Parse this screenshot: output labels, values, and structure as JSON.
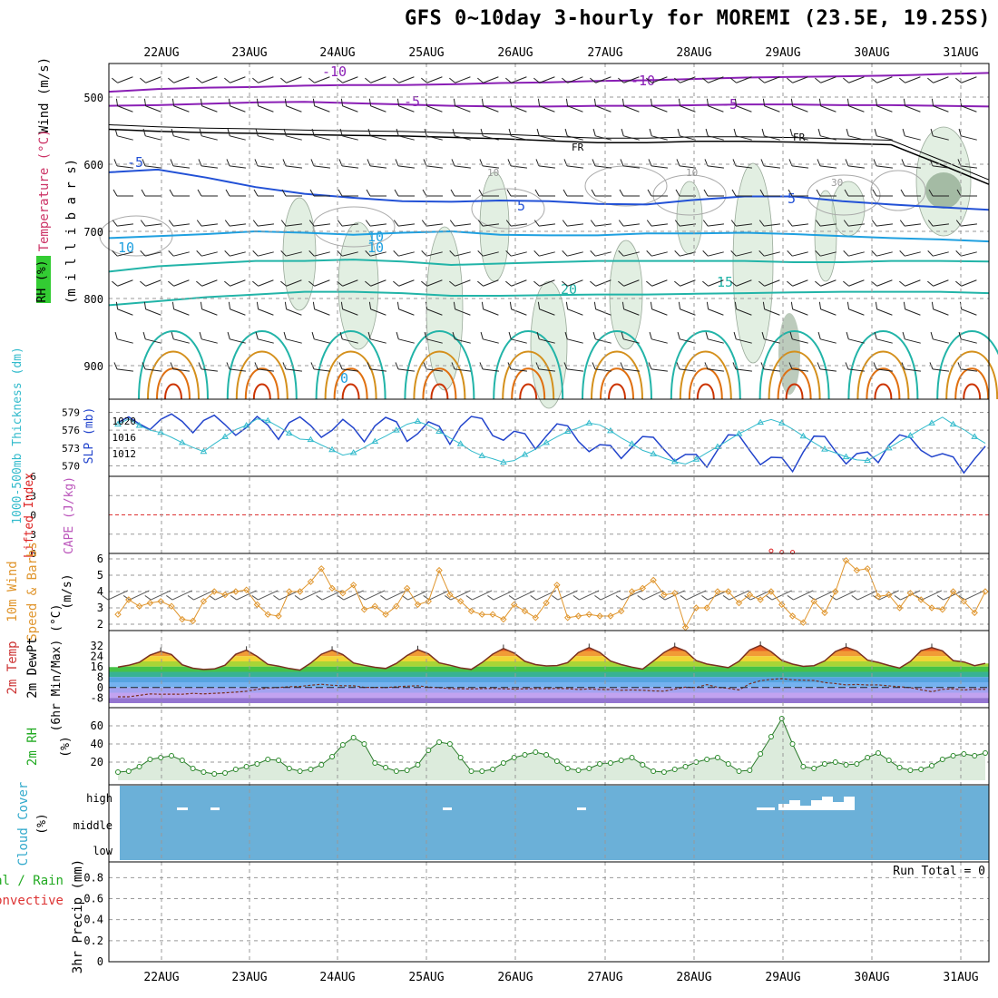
{
  "title": "GFS 0~10day 3-hourly for MOREMI (23.5E, 19.25S)",
  "colors": {
    "temperature": "#cc3333",
    "wind": "#000000",
    "rh": "#22aa22",
    "cloud": "#6bb0d8",
    "slp": "#2244cc",
    "thickness": "#33bbcc",
    "cape": "#bb55bb",
    "lifted": "#dd2222",
    "windspeed": "#e0962e",
    "rh2m": "#22aa22"
  },
  "chart_data": {
    "type": "meteogram",
    "dates": [
      "22AUG",
      "23AUG",
      "24AUG",
      "25AUG",
      "26AUG",
      "27AUG",
      "28AUG",
      "29AUG",
      "30AUG",
      "31AUG"
    ],
    "panels": {
      "upper_air": {
        "ylabels": [
          "Wind (m/s)",
          "Temperature (°C)",
          "RH (%)",
          "(m i l l i b a r s)"
        ],
        "yticks": [
          500,
          600,
          700,
          800,
          900
        ],
        "contour_labels": [
          "-10",
          "-10",
          "-5",
          "-5",
          "FR",
          "FR",
          "-5",
          "5",
          "5",
          "10",
          "10",
          "15",
          "20",
          "0",
          "10",
          "10",
          "30",
          "10"
        ],
        "isotherms": {
          "minus10": [
            492,
            488,
            486,
            485,
            483,
            482,
            482,
            481,
            479,
            478,
            476,
            475,
            473,
            471,
            470,
            469,
            468,
            466,
            464
          ],
          "minus5": [
            513,
            512,
            510,
            508,
            507,
            509,
            511,
            513,
            514,
            514,
            513,
            513,
            512,
            511,
            511,
            512,
            512,
            513,
            514
          ],
          "freezing": [
            548,
            551,
            553,
            554,
            556,
            557,
            558,
            560,
            562,
            565,
            568,
            568,
            566,
            566,
            567,
            569,
            571,
            600,
            630
          ],
          "plus5": [
            612,
            608,
            620,
            634,
            644,
            650,
            655,
            656,
            654,
            655,
            659,
            660,
            653,
            648,
            648,
            655,
            660,
            664,
            668
          ],
          "plus10": [
            710,
            707,
            704,
            700,
            702,
            705,
            702,
            700,
            705,
            706,
            706,
            703,
            703,
            702,
            704,
            707,
            710,
            712,
            715
          ],
          "plus15": [
            760,
            752,
            748,
            744,
            744,
            742,
            745,
            750,
            748,
            746,
            744,
            744,
            744,
            744,
            746,
            746,
            744,
            744,
            745
          ],
          "plus20": [
            810,
            804,
            798,
            794,
            790,
            790,
            792,
            796,
            796,
            795,
            794,
            794,
            793,
            792,
            791,
            790,
            790,
            790,
            792
          ]
        }
      },
      "slp_thickness": {
        "ylabel_left": "1000-500mb Thickness (dm)",
        "ylabel_right": "SLP (mb)",
        "thickness_ticks": [
          579,
          576,
          573,
          570
        ],
        "slp_ticks": [
          1020,
          1016,
          1012
        ],
        "slp": [
          1019.6,
          1021.0,
          1019.3,
          1017.9,
          1020.4,
          1021.7,
          1019.9,
          1017.1,
          1020.1,
          1021.4,
          1019.1,
          1016.5,
          1018.4,
          1021.1,
          1019.0,
          1015.5,
          1019.6,
          1021.0,
          1018.9,
          1016.0,
          1017.7,
          1020.4,
          1018.3,
          1014.9,
          1018.8,
          1020.9,
          1019.8,
          1015.0,
          1016.9,
          1019.8,
          1018.7,
          1014.3,
          1018.7,
          1021.1,
          1020.6,
          1016.4,
          1015.3,
          1017.5,
          1016.9,
          1013.1,
          1016.3,
          1019.3,
          1018.8,
          1015.0,
          1012.5,
          1014.2,
          1014.0,
          1010.8,
          1013.6,
          1016.2,
          1016.0,
          1013.0,
          1010.2,
          1011.8,
          1011.8,
          1008.7,
          1012.9,
          1016.6,
          1016.5,
          1012.8,
          1009.3,
          1011.1,
          1011.0,
          1007.6,
          1012.4,
          1016.3,
          1016.2,
          1012.6,
          1009.5,
          1012.0,
          1012.4,
          1009.8,
          1014.1,
          1016.6,
          1015.9,
          1012.8,
          1011.2,
          1012.0,
          1011.2,
          1007.3,
          1010.7,
          1013.8
        ],
        "thickness": [
          577.0,
          577.9,
          576.8,
          576.0,
          575.6,
          574.8,
          573.9,
          573.1,
          572.4,
          573.7,
          574.9,
          576.1,
          576.8,
          577.9,
          577.6,
          576.6,
          575.5,
          574.5,
          574.4,
          573.5,
          572.7,
          571.8,
          572.2,
          573.1,
          574.1,
          575.0,
          576.0,
          577.0,
          577.5,
          576.8,
          575.8,
          574.7,
          573.7,
          572.5,
          571.7,
          571.2,
          570.6,
          570.9,
          571.9,
          572.8,
          573.9,
          574.9,
          575.8,
          576.4,
          577.2,
          576.9,
          575.9,
          574.7,
          573.7,
          572.6,
          572.0,
          571.3,
          570.7,
          570.3,
          571.1,
          572.2,
          573.2,
          574.3,
          575.4,
          576.3,
          577.3,
          577.8,
          577.2,
          576.2,
          575.0,
          573.9,
          572.8,
          572.2,
          571.5,
          571.0,
          570.9,
          571.9,
          573.0,
          574.1,
          575.1,
          576.2,
          577.2,
          578.2,
          577.0,
          576.1,
          574.9,
          573.8
        ]
      },
      "cape_li": {
        "ylabel_left": "Lifted Index",
        "ylabel_right": "CAPE (J/kg)",
        "yticks": [
          "-6",
          "-3",
          "0",
          "3",
          "6"
        ],
        "lifted_index": [
          9.0,
          9.0,
          9.0,
          9.0,
          9.0,
          9.0,
          9.0,
          9.0,
          9.0,
          9.0,
          9.0,
          9.0,
          9.0,
          9.0,
          9.0,
          9.0,
          9.0,
          9.0,
          9.0,
          9.0,
          9.0,
          9.0,
          9.0,
          9.0,
          9.0,
          9.0,
          9.0,
          9.0,
          9.0,
          9.0,
          9.0,
          9.0,
          9.0,
          9.0,
          9.0,
          9.0,
          9.0,
          9.0,
          9.0,
          9.0,
          9.0,
          9.0,
          9.0,
          9.0,
          9.0,
          9.0,
          9.0,
          9.0,
          9.0,
          9.0,
          9.0,
          9.0,
          9.0,
          9.0,
          9.0,
          9.0,
          9.0,
          9.0,
          9.0,
          9.0,
          9.0,
          5.6,
          5.8,
          5.8,
          9.0,
          9.0,
          9.0,
          9.0,
          9.0,
          9.0,
          9.0,
          9.0,
          9.0,
          9.0,
          9.0,
          9.0,
          9.0,
          9.0,
          9.0,
          9.0,
          9.0,
          9.0
        ]
      },
      "wind10m": {
        "ylabel_left": "10m Wind",
        "ylabel_mid": "Speed & Barbs",
        "ylabel_right": "(m/s)",
        "yticks": [
          2,
          3,
          4,
          5,
          6
        ],
        "speed": [
          2.6,
          3.5,
          3.1,
          3.3,
          3.4,
          3.1,
          2.3,
          2.2,
          3.4,
          4.0,
          3.8,
          4.0,
          4.1,
          3.2,
          2.6,
          2.5,
          4.0,
          4.0,
          4.6,
          5.4,
          4.2,
          3.9,
          4.4,
          2.9,
          3.1,
          2.6,
          3.1,
          4.2,
          3.2,
          3.4,
          5.3,
          3.8,
          3.4,
          2.8,
          2.6,
          2.6,
          2.3,
          3.2,
          2.8,
          2.4,
          3.3,
          4.4,
          2.4,
          2.5,
          2.6,
          2.5,
          2.5,
          2.8,
          4.0,
          4.2,
          4.7,
          3.8,
          3.9,
          1.8,
          3.0,
          3.0,
          4.0,
          4.0,
          3.3,
          3.8,
          3.5,
          4.0,
          3.2,
          2.5,
          2.1,
          3.4,
          2.7,
          4.0,
          5.9,
          5.3,
          5.4,
          3.7,
          3.8,
          3.0,
          3.9,
          3.5,
          3.0,
          2.9,
          4.0,
          3.4,
          2.7,
          4.0
        ]
      },
      "temp2m": {
        "ylabel_left": "2m Temp",
        "ylabel_mid": "2m DewPt",
        "ylabel_right": "(6hr Min/Max) (°C)",
        "yticks": [
          32,
          24,
          16,
          8,
          0,
          -8
        ],
        "temp": [
          15.6,
          17.0,
          19.3,
          24.8,
          27.7,
          25.3,
          17.4,
          14.8,
          13.8,
          14.2,
          17.1,
          25.4,
          28.6,
          23.8,
          17.8,
          16.4,
          14.6,
          13.3,
          18.7,
          25.5,
          28.6,
          25.2,
          18.8,
          17.0,
          15.5,
          14.6,
          18.5,
          24.5,
          29.0,
          25.8,
          18.9,
          17.1,
          15.0,
          13.9,
          19.1,
          25.6,
          29.9,
          26.4,
          20.1,
          17.6,
          16.5,
          16.8,
          19.1,
          26.8,
          30.6,
          26.8,
          20.3,
          17.6,
          15.6,
          14.1,
          20.3,
          26.8,
          31.3,
          28.0,
          20.6,
          18.0,
          16.6,
          15.2,
          20.1,
          28.7,
          32.3,
          27.4,
          20.8,
          17.9,
          16.2,
          16.7,
          20.4,
          27.5,
          30.9,
          27.9,
          21.0,
          19.2,
          16.9,
          14.9,
          20.0,
          28.2,
          30.6,
          28.1,
          20.6,
          19.6,
          16.7,
          18.5
        ],
        "dewpt": [
          -7.1,
          -7.1,
          -6.0,
          -4.9,
          -5.2,
          -5.1,
          -5.2,
          -4.5,
          -4.9,
          -4.5,
          -4.1,
          -3.6,
          -2.9,
          -1.5,
          -0.3,
          0.0,
          0.6,
          0.8,
          1.7,
          2.5,
          1.7,
          1.3,
          1.3,
          0.1,
          0.1,
          0.0,
          0.5,
          1.0,
          1.3,
          0.3,
          -0.2,
          -0.8,
          -1.0,
          -1.1,
          -0.9,
          -0.7,
          -1.0,
          -1.2,
          -1.0,
          -0.9,
          -0.9,
          -0.7,
          -0.9,
          -1.6,
          -1.1,
          -1.6,
          -1.6,
          -2.1,
          -1.9,
          -2.1,
          -2.6,
          -2.8,
          -1.3,
          0.3,
          0.0,
          2.2,
          0.1,
          -0.6,
          -1.9,
          2.8,
          5.2,
          6.2,
          6.8,
          5.9,
          5.6,
          5.4,
          3.8,
          3.0,
          2.0,
          2.3,
          1.9,
          2.0,
          1.2,
          0.6,
          -0.1,
          -1.8,
          -3.2,
          -1.4,
          -1.0,
          -2.0,
          -1.3,
          -1.4
        ]
      },
      "rh2m": {
        "ylabel_left": "2m RH",
        "ylabel_right": "(%)",
        "yticks": [
          20,
          40,
          60
        ],
        "values": [
          9,
          10,
          15,
          23,
          25,
          27,
          22,
          13,
          9,
          7,
          8,
          12,
          15,
          18,
          23,
          22,
          13,
          10,
          12,
          17,
          26,
          39,
          47,
          40,
          19,
          14,
          10,
          11,
          17,
          33,
          42,
          40,
          25,
          10,
          10,
          12,
          19,
          25,
          28,
          31,
          28,
          21,
          13,
          11,
          13,
          18,
          19,
          22,
          25,
          17,
          10,
          9,
          12,
          15,
          20,
          23,
          25,
          18,
          10,
          11,
          29,
          48,
          68,
          40,
          15,
          13,
          18,
          20,
          17,
          18,
          25,
          30,
          22,
          14,
          11,
          12,
          16,
          23,
          27,
          29,
          27,
          30
        ]
      },
      "cloud": {
        "ylabel_left": "Cloud Cover",
        "ylabel_right": "(%)",
        "levels": [
          "high",
          "middle",
          "low"
        ],
        "high_fraction": [
          0,
          0,
          0,
          0,
          0,
          0,
          0,
          0,
          0,
          0,
          0,
          0,
          0,
          0,
          0,
          0,
          0,
          0,
          0,
          0,
          0,
          0,
          0,
          0,
          0,
          0,
          0,
          0,
          0,
          0,
          0,
          0,
          0,
          0,
          0,
          0,
          0,
          0,
          0,
          0,
          0,
          0,
          0,
          0,
          0,
          0,
          0,
          0,
          0,
          0,
          0,
          0,
          0,
          0,
          0,
          0,
          0,
          0,
          0,
          0,
          0,
          0,
          0,
          0,
          0,
          0,
          0,
          0,
          0,
          0,
          0,
          0,
          0,
          0,
          0,
          0,
          0,
          0,
          0,
          0,
          0,
          0
        ]
      },
      "precip": {
        "ylabel_top": "Total / Rain",
        "ylabel_bottom": "Convective",
        "ylabel_axis": "3hr Precip (mm)",
        "yticks": [
          "0",
          "0.2",
          "0.4",
          "0.6",
          "0.8"
        ],
        "run_total": "Run Total = 0"
      }
    }
  }
}
